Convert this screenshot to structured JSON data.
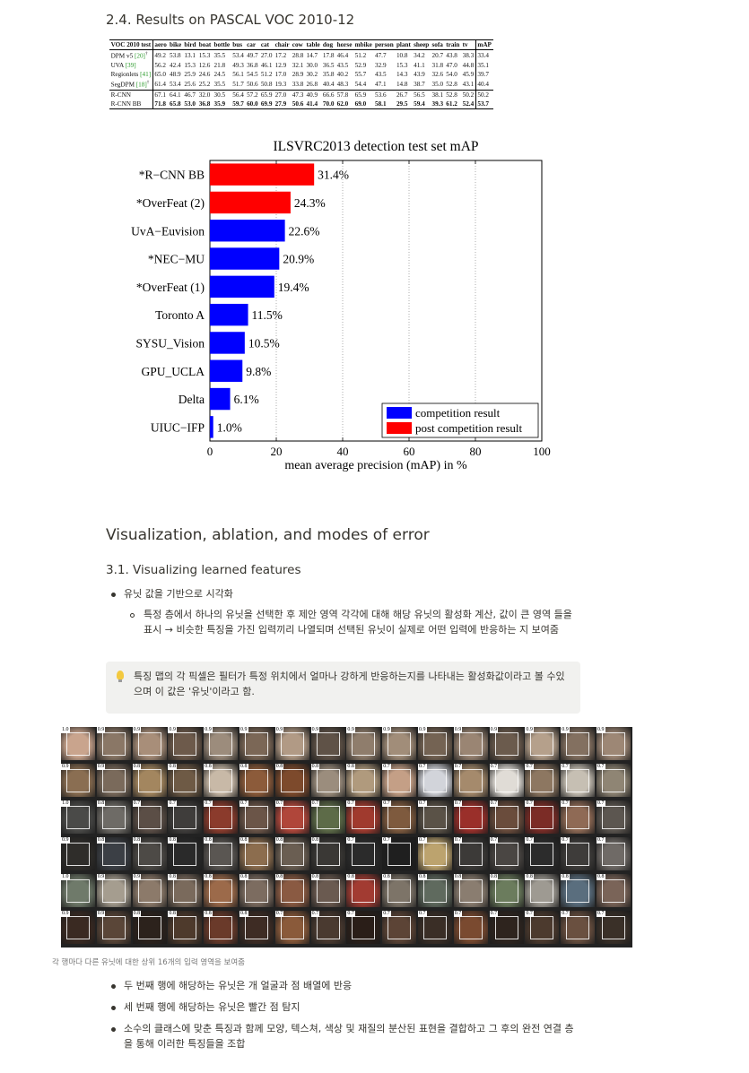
{
  "section_24_title": "2.4. Results on PASCAL VOC 2010-12",
  "voc_table": {
    "header": [
      "VOC 2010 test",
      "aero",
      "bike",
      "bird",
      "boat",
      "bottle",
      "bus",
      "car",
      "cat",
      "chair",
      "cow",
      "table",
      "dog",
      "horse",
      "mbike",
      "person",
      "plant",
      "sheep",
      "sofa",
      "train",
      "tv",
      "mAP"
    ],
    "rows": [
      {
        "method": "DPM v5",
        "ref": "[20]",
        "mark": "†",
        "values": [
          "49.2",
          "53.8",
          "13.1",
          "15.3",
          "35.5",
          "53.4",
          "49.7",
          "27.0",
          "17.2",
          "28.8",
          "14.7",
          "17.8",
          "46.4",
          "51.2",
          "47.7",
          "10.8",
          "34.2",
          "20.7",
          "43.8",
          "38.3",
          "33.4"
        ]
      },
      {
        "method": "UVA",
        "ref": "[39]",
        "mark": "",
        "values": [
          "56.2",
          "42.4",
          "15.3",
          "12.6",
          "21.8",
          "49.3",
          "36.8",
          "46.1",
          "12.9",
          "32.1",
          "30.0",
          "36.5",
          "43.5",
          "52.9",
          "32.9",
          "15.3",
          "41.1",
          "31.8",
          "47.0",
          "44.8",
          "35.1"
        ]
      },
      {
        "method": "Regionlets",
        "ref": "[41]",
        "mark": "",
        "values": [
          "65.0",
          "48.9",
          "25.9",
          "24.6",
          "24.5",
          "56.1",
          "54.5",
          "51.2",
          "17.0",
          "28.9",
          "30.2",
          "35.8",
          "40.2",
          "55.7",
          "43.5",
          "14.3",
          "43.9",
          "32.6",
          "54.0",
          "45.9",
          "39.7"
        ]
      },
      {
        "method": "SegDPM",
        "ref": "[18]",
        "mark": "†",
        "values": [
          "61.4",
          "53.4",
          "25.6",
          "25.2",
          "35.5",
          "51.7",
          "50.6",
          "50.8",
          "19.3",
          "33.8",
          "26.8",
          "40.4",
          "48.3",
          "54.4",
          "47.1",
          "14.8",
          "38.7",
          "35.0",
          "52.8",
          "43.1",
          "40.4"
        ]
      },
      {
        "method": "R-CNN",
        "ref": "",
        "mark": "",
        "values": [
          "67.1",
          "64.1",
          "46.7",
          "32.0",
          "30.5",
          "56.4",
          "57.2",
          "65.9",
          "27.0",
          "47.3",
          "40.9",
          "66.6",
          "57.8",
          "65.9",
          "53.6",
          "26.7",
          "56.5",
          "38.1",
          "52.8",
          "50.2",
          "50.2"
        ]
      },
      {
        "method": "R-CNN BB",
        "ref": "",
        "mark": "",
        "values": [
          "71.8",
          "65.8",
          "53.0",
          "36.8",
          "35.9",
          "59.7",
          "60.0",
          "69.9",
          "27.9",
          "50.6",
          "41.4",
          "70.0",
          "62.0",
          "69.0",
          "58.1",
          "29.5",
          "59.4",
          "39.3",
          "61.2",
          "52.4",
          "53.7"
        ]
      }
    ]
  },
  "chart_data": {
    "type": "bar",
    "orientation": "horizontal",
    "title": "ILSVRC2013 detection test set mAP",
    "xlabel": "mean average precision (mAP) in %",
    "ylabel": "",
    "xlim": [
      0,
      100
    ],
    "xticks": [
      0,
      20,
      40,
      60,
      80,
      100
    ],
    "grid": "vertical dotted",
    "legend_position": "bottom-right",
    "categories": [
      "*R−CNN BB",
      "*OverFeat (2)",
      "UvA−Euvision",
      "*NEC−MU",
      "*OverFeat (1)",
      "Toronto A",
      "SYSU_Vision",
      "GPU_UCLA",
      "Delta",
      "UIUC−IFP"
    ],
    "values": [
      31.4,
      24.3,
      22.6,
      20.9,
      19.4,
      11.5,
      10.5,
      9.8,
      6.1,
      1.0
    ],
    "value_labels": [
      "31.4%",
      "24.3%",
      "22.6%",
      "20.9%",
      "19.4%",
      "11.5%",
      "10.5%",
      "9.8%",
      "6.1%",
      "1.0%"
    ],
    "groups": [
      "post",
      "post",
      "competition",
      "competition",
      "competition",
      "competition",
      "competition",
      "competition",
      "competition",
      "competition"
    ],
    "legend": [
      {
        "key": "competition",
        "label": "competition result",
        "color": "#0000ff"
      },
      {
        "key": "post",
        "label": "post competition result",
        "color": "#ff0000"
      }
    ]
  },
  "section_3_title": "Visualization, ablation, and modes of error",
  "section_31_title": "3.1. Visualizing learned features",
  "bullet_1": "유닛 값을 기반으로 시각화",
  "sub_bullet_1": "특정 층에서 하나의 유닛을 선택한 후 제안 영역 각각에 대해 해당 유닛의 활성화 계산, 값이 큰 영역 들을 표시 → 비슷한 특징을 가진 입력끼리 나열되며 선택된 유닛이 실제로 어떤 입력에 반응하는 지 보여줌",
  "callout_icon": "lightbulb-icon",
  "callout_text": "특징 맵의 각 픽셀은 필터가 특정 위치에서 얼마나 강하게 반응하는지를 나타내는 활성화값이라고 볼 수있으며 이 값은 '유닛'이라고 함.",
  "grid_rows": [
    {
      "scores": [
        "1.0",
        "0.9",
        "0.9",
        "0.9",
        "0.9",
        "0.9",
        "0.9",
        "0.9",
        "0.9",
        "0.9",
        "0.9",
        "0.9",
        "0.9",
        "0.9",
        "0.9",
        "0.9"
      ],
      "colors": [
        "#c9a48d",
        "#8a7766",
        "#a88e79",
        "#6d5a4b",
        "#9c8c7c",
        "#7b6756",
        "#b19a85",
        "#5f5247",
        "#8f7d6c",
        "#a18d79",
        "#746353",
        "#9a8573",
        "#6b5b4d",
        "#b5a08b",
        "#837060",
        "#9d8775"
      ]
    },
    {
      "scores": [
        "0.9",
        "0.9",
        "0.8",
        "0.8",
        "0.8",
        "0.8",
        "0.8",
        "0.8",
        "0.8",
        "0.7",
        "0.7",
        "0.7",
        "0.7",
        "0.7",
        "0.7",
        "0.7"
      ],
      "colors": [
        "#8a6e52",
        "#7a6a5b",
        "#a3865f",
        "#6e5a45",
        "#c8b9a7",
        "#8c5b3a",
        "#7d4a2c",
        "#9b8d7d",
        "#b09a7d",
        "#c49f86",
        "#d2d4da",
        "#a58a6c",
        "#e0dcd6",
        "#8d7761",
        "#c6bfb3",
        "#8f8574"
      ]
    },
    {
      "scores": [
        "1.0",
        "0.8",
        "0.7",
        "0.7",
        "0.7",
        "0.7",
        "0.7",
        "0.7",
        "0.7",
        "0.7",
        "0.7",
        "0.7",
        "0.7",
        "0.7",
        "0.7",
        "0.7"
      ],
      "colors": [
        "#4a4a48",
        "#6e6b66",
        "#5b4e46",
        "#3f3d3b",
        "#8b3b2c",
        "#6b5548",
        "#b0463a",
        "#5d6b48",
        "#a03a2e",
        "#7e5a3e",
        "#5a5247",
        "#9a2f2a",
        "#6a4c3c",
        "#7b2c26",
        "#8f6a55",
        "#5c5650"
      ]
    },
    {
      "scores": [
        "0.9",
        "0.8",
        "0.8",
        "0.8",
        "0.8",
        "0.8",
        "0.8",
        "0.8",
        "0.7",
        "0.7",
        "0.7",
        "0.7",
        "0.7",
        "0.7",
        "0.7",
        "0.7"
      ],
      "colors": [
        "#2f2d2a",
        "#3b3f45",
        "#4d4a46",
        "#2a2a2a",
        "#5a5652",
        "#8c6d4e",
        "#6a5e52",
        "#3a3835",
        "#2b2b2b",
        "#1f1f1f",
        "#bca36e",
        "#3c3a38",
        "#4a4643",
        "#2c2c2c",
        "#3e3c3a",
        "#6f6a66"
      ]
    },
    {
      "scores": [
        "1.0",
        "0.9",
        "0.9",
        "0.8",
        "0.8",
        "0.8",
        "0.8",
        "0.8",
        "0.8",
        "0.8",
        "0.8",
        "0.8",
        "0.8",
        "0.8",
        "0.8",
        "0.8"
      ],
      "colors": [
        "#6f7a6a",
        "#a59d8f",
        "#8c7a6a",
        "#7a6a5c",
        "#9c6a4a",
        "#7c6c60",
        "#8a5a42",
        "#6a5a50",
        "#a23b32",
        "#7d7468",
        "#5f6a5e",
        "#8a7d70",
        "#6b7c5d",
        "#9e9a92",
        "#5a6e7e",
        "#7a6458"
      ]
    },
    {
      "scores": [
        "0.9",
        "0.9",
        "0.8",
        "0.8",
        "0.8",
        "0.8",
        "0.7",
        "0.7",
        "0.7",
        "0.7",
        "0.7",
        "0.7",
        "0.7",
        "0.7",
        "0.7",
        "0.7"
      ],
      "colors": [
        "#3a2a22",
        "#5a4638",
        "#2c221c",
        "#4e3a2c",
        "#6a3a2a",
        "#3e2c24",
        "#8a5a3a",
        "#4a3a30",
        "#2a1e18",
        "#5c4436",
        "#3a2e26",
        "#7a4a30",
        "#2e241e",
        "#4c3a2e",
        "#6a5040",
        "#3a3028"
      ]
    }
  ],
  "grid_caption": "각 행마다 다른 유닛에 대한 상위 16개의 입력 영역을 보여줌",
  "bullets_after": [
    "두 번째 행에 해당하는 유닛은 개 얼굴과 점 배열에 반응",
    "세 번째 행에 해당하는 유닛은 빨간 점 탐지",
    "소수의 클래스에 맞춘 특징과 함께 모양, 텍스쳐, 색상 및 재질의 분산된 표현을 결합하고 그 후의 완전 연결 층을 통해 이러한 특징들을 조합"
  ]
}
